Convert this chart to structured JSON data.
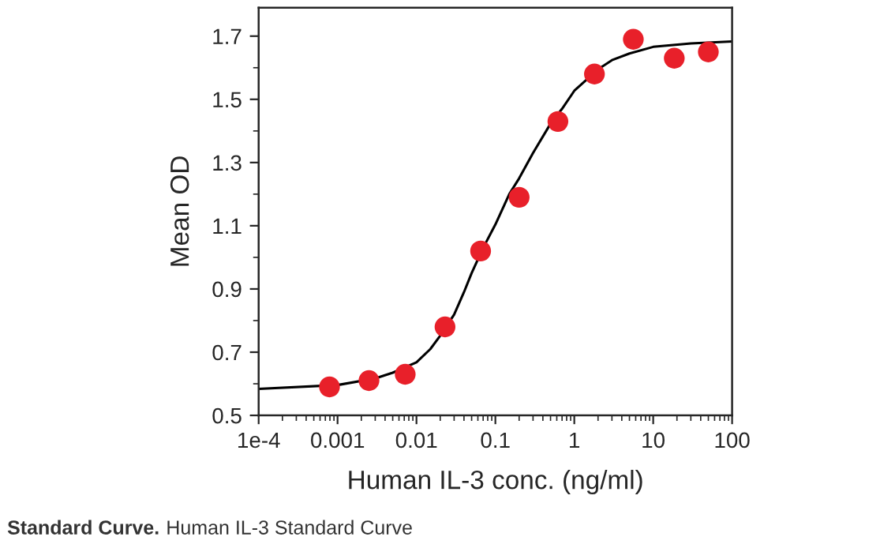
{
  "chart_data": {
    "type": "scatter",
    "xlabel": "Human IL-3 conc. (ng/ml)",
    "ylabel": "Mean OD",
    "annotations": [
      "Standard Curve.",
      "Human IL-3 Standard Curve"
    ],
    "log": "x",
    "xlim": [
      0.0001,
      100
    ],
    "ylim": [
      0.5,
      1.79
    ],
    "xticks": [
      {
        "value": 0.0001,
        "label": "1e-4"
      },
      0.001,
      0.01,
      0.1,
      1,
      10,
      100
    ],
    "yticks": [
      0.5,
      0.7,
      0.9,
      1.1,
      1.3,
      1.5,
      1.7
    ],
    "grid": false,
    "series": [
      {
        "marker": "circle",
        "color": "#e8202a",
        "x": [
          0.00079,
          0.0025,
          0.0072,
          0.023,
          0.065,
          0.2,
          0.62,
          1.8,
          5.6,
          18.5,
          50
        ],
        "values": [
          0.59,
          0.61,
          0.63,
          0.78,
          1.02,
          1.19,
          1.43,
          1.58,
          1.69,
          1.63,
          1.65
        ]
      },
      {
        "type": "line",
        "marker": "none",
        "line_style": "solid",
        "color": "#000000",
        "x": [
          0.0001,
          0.001,
          0.003,
          0.005,
          0.01,
          0.015,
          0.02,
          0.03,
          0.04,
          0.05,
          0.07,
          0.1,
          0.15,
          0.2,
          0.3,
          0.5,
          0.7,
          1,
          2,
          3,
          5,
          10,
          30,
          100
        ],
        "values": [
          0.584,
          0.596,
          0.617,
          0.635,
          0.668,
          0.71,
          0.752,
          0.819,
          0.89,
          0.95,
          1.03,
          1.104,
          1.2,
          1.25,
          1.33,
          1.423,
          1.47,
          1.527,
          1.595,
          1.624,
          1.645,
          1.666,
          1.677,
          1.683
        ]
      }
    ]
  }
}
